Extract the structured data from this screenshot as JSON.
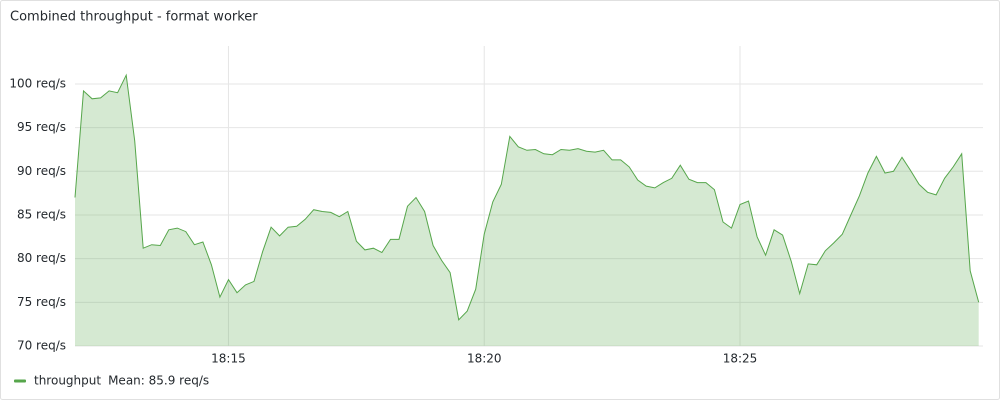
{
  "chart_data": {
    "type": "line",
    "title": "Combined throughput - format worker",
    "x": [
      "18:12:00",
      "18:12:10",
      "18:12:20",
      "18:12:30",
      "18:12:40",
      "18:12:50",
      "18:13:00",
      "18:13:10",
      "18:13:20",
      "18:13:30",
      "18:13:40",
      "18:13:50",
      "18:14:00",
      "18:14:10",
      "18:14:20",
      "18:14:30",
      "18:14:40",
      "18:14:50",
      "18:15:00",
      "18:15:10",
      "18:15:20",
      "18:15:30",
      "18:15:40",
      "18:15:50",
      "18:16:00",
      "18:16:10",
      "18:16:20",
      "18:16:30",
      "18:16:40",
      "18:16:50",
      "18:17:00",
      "18:17:10",
      "18:17:20",
      "18:17:30",
      "18:17:40",
      "18:17:50",
      "18:18:00",
      "18:18:10",
      "18:18:20",
      "18:18:30",
      "18:18:40",
      "18:18:50",
      "18:19:00",
      "18:19:10",
      "18:19:20",
      "18:19:30",
      "18:19:40",
      "18:19:50",
      "18:20:00",
      "18:20:10",
      "18:20:20",
      "18:20:30",
      "18:20:40",
      "18:20:50",
      "18:21:00",
      "18:21:10",
      "18:21:20",
      "18:21:30",
      "18:21:40",
      "18:21:50",
      "18:22:00",
      "18:22:10",
      "18:22:20",
      "18:22:30",
      "18:22:40",
      "18:22:50",
      "18:23:00",
      "18:23:10",
      "18:23:20",
      "18:23:30",
      "18:23:40",
      "18:23:50",
      "18:24:00",
      "18:24:10",
      "18:24:20",
      "18:24:30",
      "18:24:40",
      "18:24:50",
      "18:25:00",
      "18:25:10",
      "18:25:20",
      "18:25:30",
      "18:25:40",
      "18:25:50",
      "18:26:00",
      "18:26:10",
      "18:26:20",
      "18:26:30",
      "18:26:40",
      "18:26:50",
      "18:27:00",
      "18:27:10",
      "18:27:20",
      "18:27:30",
      "18:27:40",
      "18:27:50",
      "18:28:00",
      "18:28:10",
      "18:28:20",
      "18:28:30",
      "18:28:40",
      "18:28:50",
      "18:29:00",
      "18:29:10",
      "18:29:20",
      "18:29:30",
      "18:29:40"
    ],
    "series": [
      {
        "name": "throughput",
        "color": "#56a64b",
        "values": [
          87,
          99.2,
          98.3,
          98.4,
          99.2,
          99,
          101,
          93.5,
          81.2,
          81.6,
          81.5,
          83.3,
          83.5,
          83.1,
          81.6,
          81.9,
          79.3,
          75.6,
          77.6,
          76.1,
          77,
          77.4,
          80.8,
          83.6,
          82.6,
          83.6,
          83.7,
          84.5,
          85.6,
          85.4,
          85.3,
          84.8,
          85.4,
          82,
          81,
          81.2,
          80.7,
          82.2,
          82.2,
          86,
          87,
          85.4,
          81.5,
          79.8,
          78.4,
          73,
          74,
          76.5,
          82.8,
          86.5,
          88.5,
          94,
          92.8,
          92.4,
          92.5,
          92,
          91.9,
          92.5,
          92.4,
          92.6,
          92.3,
          92.2,
          92.4,
          91.3,
          91.3,
          90.5,
          89,
          88.3,
          88.1,
          88.7,
          89.2,
          90.7,
          89.1,
          88.7,
          88.7,
          87.9,
          84.2,
          83.5,
          86.2,
          86.6,
          82.5,
          80.4,
          83.3,
          82.7,
          79.7,
          76,
          79.4,
          79.3,
          80.9,
          81.8,
          82.8,
          85,
          87.2,
          89.8,
          91.7,
          89.8,
          90,
          91.6,
          90.1,
          88.5,
          87.6,
          87.3,
          89.2,
          90.5,
          92,
          78.6,
          75
        ]
      }
    ],
    "legend_stat": "Mean: 85.9 req/s",
    "xlim": [
      "18:12:00",
      "18:29:45"
    ],
    "xticks": [
      {
        "value": "18:15:00",
        "label": "18:15"
      },
      {
        "value": "18:20:00",
        "label": "18:20"
      },
      {
        "value": "18:25:00",
        "label": "18:25"
      }
    ],
    "ylim": [
      70,
      104
    ],
    "yticks": [
      {
        "value": 70,
        "label": "70 req/s"
      },
      {
        "value": 75,
        "label": "75 req/s"
      },
      {
        "value": 80,
        "label": "80 req/s"
      },
      {
        "value": 85,
        "label": "85 req/s"
      },
      {
        "value": 90,
        "label": "90 req/s"
      },
      {
        "value": 95,
        "label": "95 req/s"
      },
      {
        "value": 100,
        "label": "100 req/s"
      }
    ],
    "grid": true,
    "legend": "bottom-left"
  }
}
